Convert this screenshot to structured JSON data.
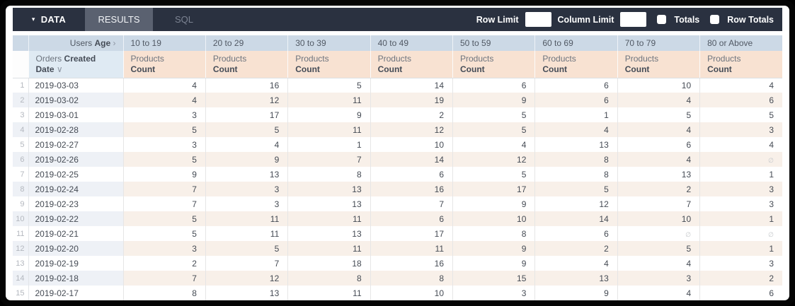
{
  "tabs": {
    "data_label": "DATA",
    "results_label": "RESULTS",
    "sql_label": "SQL"
  },
  "controls": {
    "row_limit_label": "Row Limit",
    "row_limit_value": "",
    "column_limit_label": "Column Limit",
    "column_limit_value": "",
    "totals_label": "Totals",
    "totals_checked": false,
    "row_totals_label": "Row Totals",
    "row_totals_checked": false
  },
  "icons": {
    "caret_down": "▾",
    "chevron_right": "›",
    "chevron_down": "∨",
    "null_symbol": "∅"
  },
  "pivot": {
    "field_prefix": "Users",
    "field_bold": "Age",
    "row_field_prefix": "Orders",
    "row_field_bold": "Created Date",
    "measure_prefix": "Products",
    "measure_bold": "Count",
    "age_buckets": [
      "10 to 19",
      "20 to 29",
      "30 to 39",
      "40 to 49",
      "50 to 59",
      "60 to 69",
      "70 to 79",
      "80 or Above"
    ]
  },
  "colors": {
    "topbar_bg": "#2a3140",
    "active_tab_bg": "#5a6170",
    "header_blue": "#ccd9e6",
    "header_blue_light": "#dfeaf3",
    "header_peach": "#f8e2d2",
    "row_even_blue": "#eef1f6",
    "row_even_peach": "#f8f0e9"
  },
  "table": {
    "rows": [
      {
        "num": 1,
        "date": "2019-03-03",
        "values": [
          4,
          16,
          5,
          14,
          6,
          6,
          10,
          4
        ]
      },
      {
        "num": 2,
        "date": "2019-03-02",
        "values": [
          4,
          12,
          11,
          19,
          9,
          6,
          4,
          6
        ]
      },
      {
        "num": 3,
        "date": "2019-03-01",
        "values": [
          3,
          17,
          9,
          2,
          5,
          1,
          5,
          5
        ]
      },
      {
        "num": 4,
        "date": "2019-02-28",
        "values": [
          5,
          5,
          11,
          12,
          5,
          4,
          4,
          3
        ]
      },
      {
        "num": 5,
        "date": "2019-02-27",
        "values": [
          3,
          4,
          1,
          10,
          4,
          13,
          6,
          4
        ]
      },
      {
        "num": 6,
        "date": "2019-02-26",
        "values": [
          5,
          9,
          7,
          14,
          12,
          8,
          4,
          null
        ]
      },
      {
        "num": 7,
        "date": "2019-02-25",
        "values": [
          9,
          13,
          8,
          6,
          5,
          8,
          13,
          1
        ]
      },
      {
        "num": 8,
        "date": "2019-02-24",
        "values": [
          7,
          3,
          13,
          16,
          17,
          5,
          2,
          3
        ]
      },
      {
        "num": 9,
        "date": "2019-02-23",
        "values": [
          7,
          3,
          13,
          7,
          9,
          12,
          7,
          3
        ]
      },
      {
        "num": 10,
        "date": "2019-02-22",
        "values": [
          5,
          11,
          11,
          6,
          10,
          14,
          10,
          1
        ]
      },
      {
        "num": 11,
        "date": "2019-02-21",
        "values": [
          5,
          11,
          13,
          17,
          8,
          6,
          null,
          null
        ]
      },
      {
        "num": 12,
        "date": "2019-02-20",
        "values": [
          3,
          5,
          11,
          11,
          9,
          2,
          5,
          1
        ]
      },
      {
        "num": 13,
        "date": "2019-02-19",
        "values": [
          2,
          7,
          18,
          16,
          9,
          4,
          4,
          3
        ]
      },
      {
        "num": 14,
        "date": "2019-02-18",
        "values": [
          7,
          12,
          8,
          8,
          15,
          13,
          3,
          2
        ]
      },
      {
        "num": 15,
        "date": "2019-02-17",
        "values": [
          8,
          13,
          11,
          10,
          3,
          9,
          4,
          6
        ]
      }
    ]
  }
}
